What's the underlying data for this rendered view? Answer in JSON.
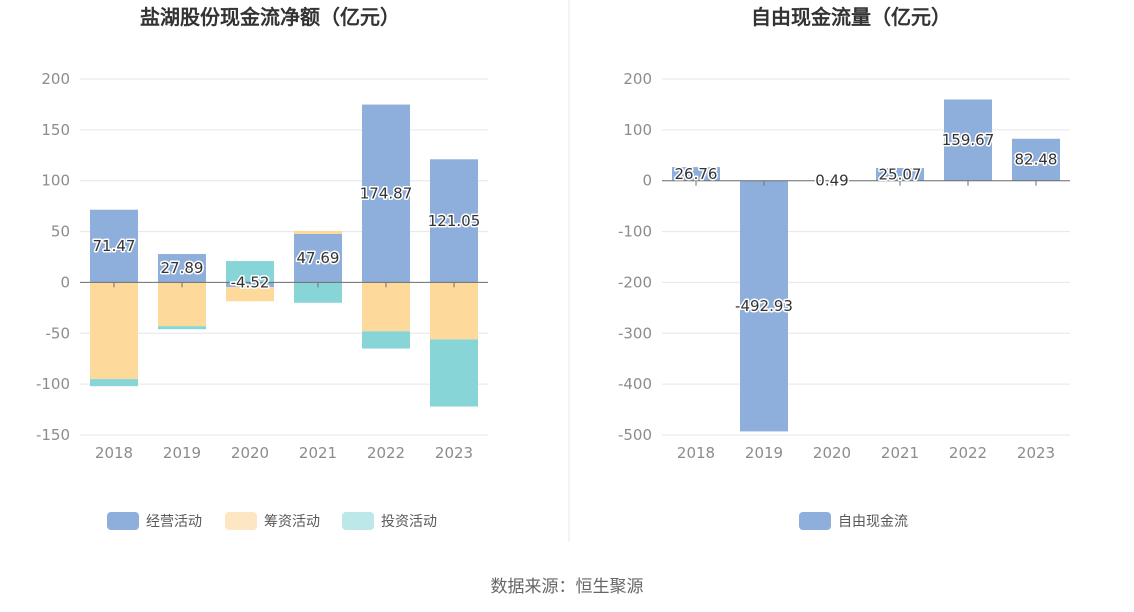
{
  "source_text": "数据来源：恒生聚源",
  "chart_data": [
    {
      "type": "bar",
      "stacked": true,
      "title": "盐湖股份现金流净额（亿元）",
      "categories": [
        "2018",
        "2019",
        "2020",
        "2021",
        "2022",
        "2023"
      ],
      "ylim": [
        -150,
        200
      ],
      "yticks": [
        200,
        150,
        100,
        50,
        0,
        -50,
        -100,
        -150
      ],
      "grid": true,
      "legend_position": "bottom",
      "series": [
        {
          "name": "经营活动",
          "color": "#8eaedc",
          "values": [
            71.47,
            27.89,
            -4.52,
            47.69,
            174.87,
            121.05
          ],
          "labels": [
            "71.47",
            "27.89",
            "-4.52",
            "47.69",
            "174.87",
            "121.05"
          ]
        },
        {
          "name": "筹资活动",
          "color": "#fdd99b",
          "legend_color": "#fde6c2",
          "values": [
            -95,
            -43,
            -14,
            3,
            -48,
            -56
          ]
        },
        {
          "name": "投资活动",
          "color": "#88d5d8",
          "legend_color": "#bde8ea",
          "values": [
            -7,
            -3,
            21,
            -20,
            -17,
            -66
          ]
        }
      ]
    },
    {
      "type": "bar",
      "title": "自由现金流量（亿元）",
      "categories": [
        "2018",
        "2019",
        "2020",
        "2021",
        "2022",
        "2023"
      ],
      "ylim": [
        -500,
        200
      ],
      "yticks": [
        200,
        100,
        0,
        -100,
        -200,
        -300,
        -400,
        -500
      ],
      "grid": true,
      "legend_position": "bottom",
      "series": [
        {
          "name": "自由现金流",
          "color": "#8eaedc",
          "values": [
            26.76,
            -492.93,
            0.49,
            25.07,
            159.67,
            82.48
          ],
          "labels": [
            "26.76",
            "-492.93",
            "0.49",
            "25.07",
            "159.67",
            "82.48"
          ]
        }
      ]
    }
  ]
}
